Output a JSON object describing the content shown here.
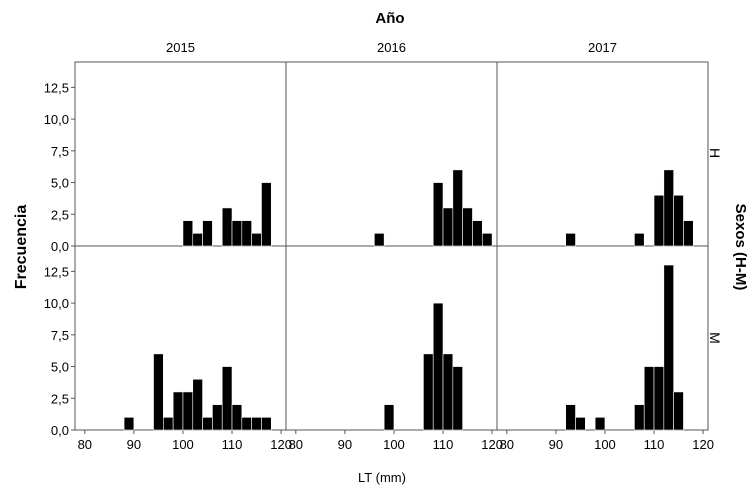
{
  "chart_data": {
    "type": "bar",
    "title": "Año",
    "xlabel": "LT (mm)",
    "ylabel": "Frecuencia",
    "row_axis_label": "Sexos (H-M)",
    "columns": [
      "2015",
      "2016",
      "2017"
    ],
    "rows": [
      "H",
      "M"
    ],
    "xlim": [
      78,
      121
    ],
    "ylim": [
      0,
      14.5
    ],
    "bin_width": 2,
    "x_ticks": [
      "80",
      "90",
      "100",
      "110",
      "120"
    ],
    "y_ticks": [
      "0,0",
      "2,5",
      "5,0",
      "7,5",
      "10,0",
      "12,5"
    ],
    "grid": false,
    "facets": [
      {
        "year": "2015",
        "sex": "H",
        "bins": [
          [
            101,
            2
          ],
          [
            103,
            1
          ],
          [
            105,
            2
          ],
          [
            109,
            3
          ],
          [
            111,
            2
          ],
          [
            113,
            2
          ],
          [
            115,
            1
          ],
          [
            117,
            5
          ]
        ]
      },
      {
        "year": "2016",
        "sex": "H",
        "bins": [
          [
            97,
            1
          ],
          [
            109,
            5
          ],
          [
            111,
            3
          ],
          [
            113,
            6
          ],
          [
            115,
            3
          ],
          [
            117,
            2
          ],
          [
            119,
            1
          ]
        ]
      },
      {
        "year": "2017",
        "sex": "H",
        "bins": [
          [
            93,
            1
          ],
          [
            107,
            1
          ],
          [
            111,
            4
          ],
          [
            113,
            6
          ],
          [
            115,
            4
          ],
          [
            117,
            2
          ]
        ]
      },
      {
        "year": "2015",
        "sex": "M",
        "bins": [
          [
            89,
            1
          ],
          [
            95,
            6
          ],
          [
            97,
            1
          ],
          [
            99,
            3
          ],
          [
            101,
            3
          ],
          [
            103,
            4
          ],
          [
            105,
            1
          ],
          [
            107,
            2
          ],
          [
            109,
            5
          ],
          [
            111,
            2
          ],
          [
            113,
            1
          ],
          [
            115,
            1
          ],
          [
            117,
            1
          ]
        ]
      },
      {
        "year": "2016",
        "sex": "M",
        "bins": [
          [
            99,
            2
          ],
          [
            107,
            6
          ],
          [
            109,
            10
          ],
          [
            111,
            6
          ],
          [
            113,
            5
          ]
        ]
      },
      {
        "year": "2017",
        "sex": "M",
        "bins": [
          [
            93,
            2
          ],
          [
            95,
            1
          ],
          [
            99,
            1
          ],
          [
            107,
            2
          ],
          [
            109,
            5
          ],
          [
            111,
            5
          ],
          [
            113,
            13
          ],
          [
            115,
            3
          ]
        ]
      }
    ]
  }
}
